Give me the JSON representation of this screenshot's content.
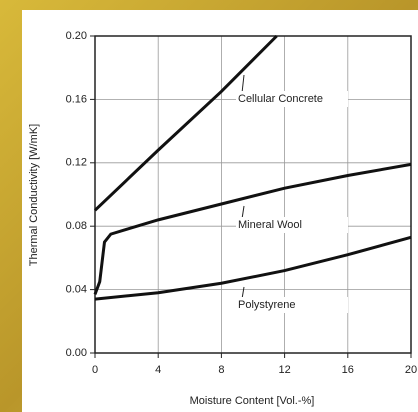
{
  "chart_data": {
    "type": "line",
    "x_label": "Moisture Content [Vol.-%]",
    "y_label": "Thermal Conductivity [W/mK]",
    "series": [
      {
        "name": "Cellular Concrete",
        "color": "#111111",
        "x": [
          0,
          4,
          8,
          11.5
        ],
        "values": [
          0.09,
          0.128,
          0.165,
          0.2
        ]
      },
      {
        "name": "Mineral Wool",
        "color": "#111111",
        "x": [
          0,
          0.3,
          0.6,
          1,
          2,
          4,
          8,
          12,
          16,
          20
        ],
        "values": [
          0.037,
          0.045,
          0.07,
          0.075,
          0.078,
          0.084,
          0.094,
          0.104,
          0.112,
          0.119
        ]
      },
      {
        "name": "Polystyrene",
        "color": "#111111",
        "x": [
          0,
          4,
          8,
          12,
          16,
          20
        ],
        "values": [
          0.034,
          0.038,
          0.044,
          0.052,
          0.062,
          0.073
        ]
      }
    ],
    "xlim": [
      0,
      20
    ],
    "xticks": [
      0,
      4,
      8,
      12,
      16,
      20
    ],
    "ylim": [
      0,
      0.2
    ],
    "yticks": [
      {
        "value": 0,
        "label": "0.00"
      },
      {
        "value": 0.04,
        "label": "0.04"
      },
      {
        "value": 0.08,
        "label": "0.08"
      },
      {
        "value": 0.12,
        "label": "0.12"
      },
      {
        "value": 0.16,
        "label": "0.16"
      },
      {
        "value": 0.2,
        "label": "0.20"
      }
    ],
    "grid": true
  }
}
